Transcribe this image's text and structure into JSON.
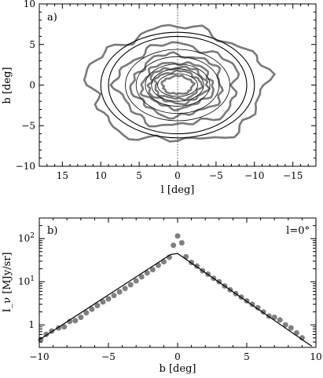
{
  "chart_data": [
    {
      "panel_label": "a)",
      "type": "contour",
      "xlabel": "l [deg]",
      "ylabel": "b [deg]",
      "xlim": [
        18,
        -18
      ],
      "ylim": [
        -10,
        10
      ],
      "x_ticks": [
        15,
        10,
        5,
        0,
        -5,
        -10,
        -15
      ],
      "y_ticks": [
        -10,
        -5,
        0,
        5,
        10
      ],
      "grid": false,
      "reference_line": {
        "l": 0,
        "style": "dotted"
      },
      "colors": {
        "observed": "#7a7a7a",
        "model": "#000000"
      },
      "model_contours": [
        {
          "a": 10.0,
          "b": 6.5
        },
        {
          "a": 9.0,
          "b": 6.0
        },
        {
          "a": 6.8,
          "b": 4.4
        },
        {
          "a": 5.4,
          "b": 3.5
        },
        {
          "a": 4.2,
          "b": 2.6
        },
        {
          "a": 3.4,
          "b": 2.0
        },
        {
          "a": 2.6,
          "b": 1.4
        }
      ],
      "observed_contours": [
        {
          "a": 11.5,
          "b": 7.0
        },
        {
          "a": 7.8,
          "b": 5.0
        },
        {
          "a": 5.8,
          "b": 3.8
        },
        {
          "a": 4.6,
          "b": 2.8
        },
        {
          "a": 3.8,
          "b": 2.2
        },
        {
          "a": 3.0,
          "b": 1.7
        },
        {
          "a": 2.0,
          "b": 1.1
        }
      ]
    },
    {
      "panel_label": "b)",
      "type": "scatter",
      "annotation": "l=0°",
      "xlabel": "b [deg]",
      "ylabel": "I_ν [MJy/sr]",
      "xlim": [
        -10,
        10
      ],
      "ylim": [
        0.3,
        300
      ],
      "yscale": "log",
      "x_ticks": [
        -10,
        -5,
        0,
        5,
        10
      ],
      "y_ticks": [
        1,
        10,
        100
      ],
      "grid": false,
      "colors": {
        "points": "#808080",
        "model": "#000000"
      },
      "series": [
        {
          "type": "scatter",
          "points": [
            [
              -9.9,
              0.45
            ],
            [
              -9.5,
              0.6
            ],
            [
              -9.1,
              0.72
            ],
            [
              -8.6,
              0.85
            ],
            [
              -8.2,
              0.9
            ],
            [
              -7.8,
              1.2
            ],
            [
              -7.4,
              1.25
            ],
            [
              -7.0,
              1.5
            ],
            [
              -6.6,
              1.9
            ],
            [
              -6.2,
              2.3
            ],
            [
              -5.8,
              2.8
            ],
            [
              -5.4,
              3.4
            ],
            [
              -5.0,
              4.0
            ],
            [
              -4.6,
              4.8
            ],
            [
              -4.2,
              5.8
            ],
            [
              -3.8,
              7.0
            ],
            [
              -3.4,
              8.5
            ],
            [
              -3.0,
              10.5
            ],
            [
              -2.6,
              13
            ],
            [
              -2.2,
              16
            ],
            [
              -1.8,
              19
            ],
            [
              -1.4,
              24
            ],
            [
              -1.0,
              29
            ],
            [
              -0.6,
              37
            ],
            [
              -0.3,
              70
            ],
            [
              0.0,
              115
            ],
            [
              0.3,
              80
            ],
            [
              0.6,
              38
            ],
            [
              1.0,
              28
            ],
            [
              1.4,
              23
            ],
            [
              1.8,
              18
            ],
            [
              2.2,
              15
            ],
            [
              2.6,
              12
            ],
            [
              3.0,
              10
            ],
            [
              3.4,
              8.0
            ],
            [
              3.8,
              6.5
            ],
            [
              4.2,
              5.3
            ],
            [
              4.6,
              4.4
            ],
            [
              5.0,
              3.6
            ],
            [
              5.4,
              3.0
            ],
            [
              5.8,
              2.5
            ],
            [
              6.2,
              2.0
            ],
            [
              6.6,
              1.6
            ],
            [
              7.0,
              1.5
            ],
            [
              7.4,
              1.3
            ],
            [
              7.8,
              1.0
            ],
            [
              8.2,
              0.85
            ],
            [
              8.6,
              0.65
            ],
            [
              9.0,
              0.5
            ]
          ]
        },
        {
          "type": "line",
          "points": [
            [
              -10,
              0.45
            ],
            [
              -0.5,
              43
            ],
            [
              0,
              45
            ],
            [
              9.7,
              0.32
            ]
          ]
        }
      ]
    }
  ]
}
